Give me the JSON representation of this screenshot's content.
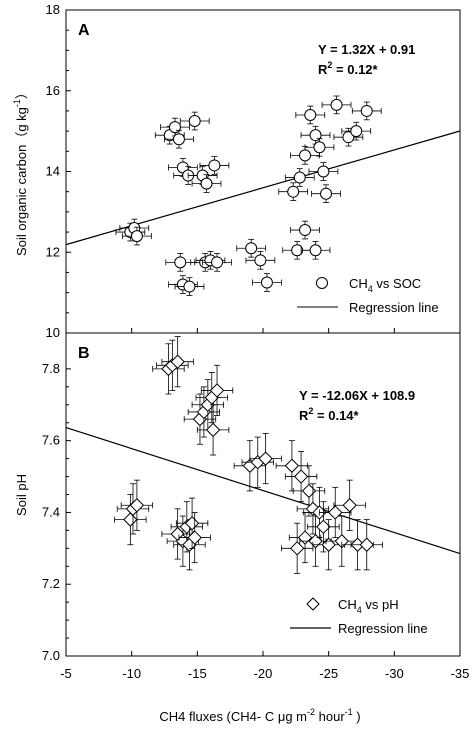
{
  "chart_data": [
    {
      "type": "scatter",
      "panel_label": "A",
      "ylabel_main": "Soil organic carbon",
      "ylabel_units": "（g kg",
      "ylabel_sup": "-1",
      "ylabel_close": "）",
      "xlim": [
        -5,
        -35
      ],
      "ylim": [
        10,
        18
      ],
      "yticks": [
        10,
        12,
        14,
        16,
        18
      ],
      "equation": "Y = 1.32X + 0.91",
      "r2_prefix": "R",
      "r2_sup": "2",
      "r2_value": " = 0.12*",
      "regression": {
        "slope": -0.0938,
        "intercept": 11.72
      },
      "legend": {
        "marker_prefix": "CH",
        "marker_sub": "4",
        "marker_suffix": " vs SOC",
        "line_label": "Regression line",
        "position": "bottom-right"
      },
      "marker": "circle",
      "x_err": 1.1,
      "y_err": 0.22,
      "points": [
        {
          "x": -9.9,
          "y": 12.5
        },
        {
          "x": -10.2,
          "y": 12.6
        },
        {
          "x": -10.4,
          "y": 12.4
        },
        {
          "x": -12.9,
          "y": 14.9
        },
        {
          "x": -13.3,
          "y": 15.1
        },
        {
          "x": -13.6,
          "y": 14.8
        },
        {
          "x": -14.8,
          "y": 15.25
        },
        {
          "x": -13.9,
          "y": 14.1
        },
        {
          "x": -14.3,
          "y": 13.9
        },
        {
          "x": -15.4,
          "y": 13.9
        },
        {
          "x": -15.7,
          "y": 13.7
        },
        {
          "x": -16.3,
          "y": 14.15
        },
        {
          "x": -13.7,
          "y": 11.75
        },
        {
          "x": -13.9,
          "y": 11.2
        },
        {
          "x": -14.4,
          "y": 11.15
        },
        {
          "x": -15.6,
          "y": 11.75
        },
        {
          "x": -16.0,
          "y": 11.8
        },
        {
          "x": -16.5,
          "y": 11.75
        },
        {
          "x": -19.1,
          "y": 12.1
        },
        {
          "x": -19.8,
          "y": 11.8
        },
        {
          "x": -20.3,
          "y": 11.25
        },
        {
          "x": -22.3,
          "y": 13.5
        },
        {
          "x": -22.8,
          "y": 13.85
        },
        {
          "x": -23.2,
          "y": 14.4
        },
        {
          "x": -23.6,
          "y": 15.4
        },
        {
          "x": -24.0,
          "y": 14.9
        },
        {
          "x": -24.3,
          "y": 14.6
        },
        {
          "x": -24.6,
          "y": 14.0
        },
        {
          "x": -24.8,
          "y": 13.45
        },
        {
          "x": -25.6,
          "y": 15.65
        },
        {
          "x": -26.5,
          "y": 14.85
        },
        {
          "x": -27.1,
          "y": 15.0
        },
        {
          "x": -27.9,
          "y": 15.5
        },
        {
          "x": -22.6,
          "y": 12.05
        },
        {
          "x": -23.2,
          "y": 12.55
        },
        {
          "x": -24.0,
          "y": 12.05
        }
      ]
    },
    {
      "type": "scatter",
      "panel_label": "B",
      "ylabel_main": "Soil pH",
      "xlabel_main": "CH4  fluxes (CH4- C μg  m",
      "xlabel_sup": "-2",
      "xlabel_end": " hour",
      "xlabel_sup2": "-1",
      "xlabel_close": " )",
      "xlim": [
        -5,
        -35
      ],
      "ylim": [
        7.0,
        7.9
      ],
      "yticks": [
        7.0,
        7.2,
        7.4,
        7.6,
        7.8
      ],
      "xticks": [
        -5,
        -10,
        -15,
        -20,
        -25,
        -30,
        -35
      ],
      "equation": "Y = -12.06X + 108.9",
      "r2_prefix": "R",
      "r2_sup": "2",
      "r2_value": " = 0.14*",
      "regression": {
        "slope": 0.0117,
        "intercept": 7.695
      },
      "legend": {
        "marker_prefix": "CH",
        "marker_sub": "4",
        "marker_suffix": " vs pH",
        "line_label": "Regression line",
        "position": "bottom-right"
      },
      "marker": "diamond",
      "x_err": 1.2,
      "y_err": 0.07,
      "points": [
        {
          "x": -9.9,
          "y": 7.38
        },
        {
          "x": -10.1,
          "y": 7.41
        },
        {
          "x": -10.4,
          "y": 7.42
        },
        {
          "x": -12.8,
          "y": 7.8
        },
        {
          "x": -13.1,
          "y": 7.81
        },
        {
          "x": -13.5,
          "y": 7.82
        },
        {
          "x": -13.5,
          "y": 7.34
        },
        {
          "x": -13.9,
          "y": 7.32
        },
        {
          "x": -14.2,
          "y": 7.36
        },
        {
          "x": -14.4,
          "y": 7.31
        },
        {
          "x": -14.6,
          "y": 7.37
        },
        {
          "x": -14.8,
          "y": 7.33
        },
        {
          "x": -15.2,
          "y": 7.66
        },
        {
          "x": -15.5,
          "y": 7.68
        },
        {
          "x": -15.8,
          "y": 7.7
        },
        {
          "x": -16.1,
          "y": 7.72
        },
        {
          "x": -16.2,
          "y": 7.63
        },
        {
          "x": -16.5,
          "y": 7.74
        },
        {
          "x": -19.0,
          "y": 7.53
        },
        {
          "x": -19.6,
          "y": 7.54
        },
        {
          "x": -20.2,
          "y": 7.55
        },
        {
          "x": -22.2,
          "y": 7.53
        },
        {
          "x": -22.6,
          "y": 7.3
        },
        {
          "x": -22.9,
          "y": 7.5
        },
        {
          "x": -23.2,
          "y": 7.33
        },
        {
          "x": -23.5,
          "y": 7.46
        },
        {
          "x": -23.8,
          "y": 7.41
        },
        {
          "x": -24.0,
          "y": 7.32
        },
        {
          "x": -24.3,
          "y": 7.4
        },
        {
          "x": -24.6,
          "y": 7.36
        },
        {
          "x": -25.0,
          "y": 7.31
        },
        {
          "x": -25.5,
          "y": 7.4
        },
        {
          "x": -26.0,
          "y": 7.32
        },
        {
          "x": -26.6,
          "y": 7.42
        },
        {
          "x": -27.2,
          "y": 7.31
        },
        {
          "x": -27.9,
          "y": 7.31
        }
      ]
    }
  ]
}
